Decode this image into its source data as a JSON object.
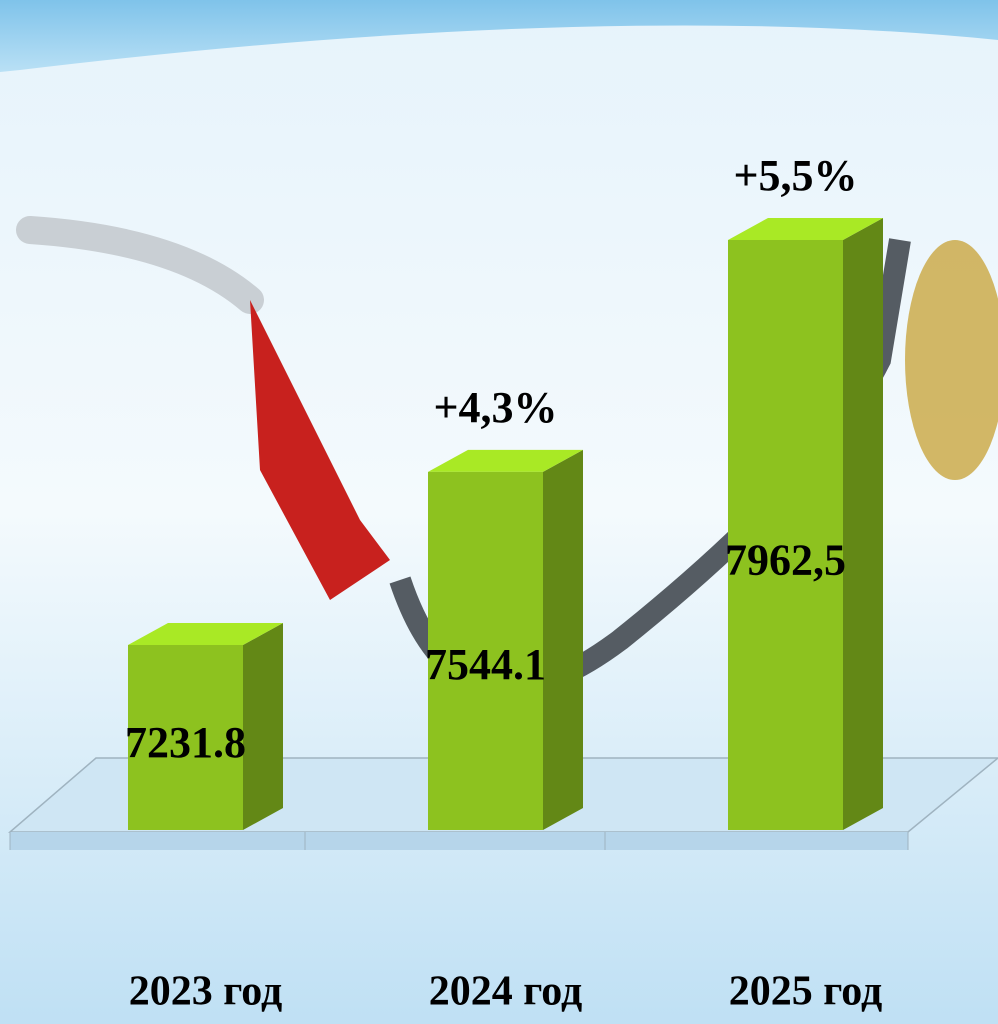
{
  "chart_data": {
    "type": "bar3d",
    "categories": [
      "2023 год",
      "2024 год",
      "2025 год"
    ],
    "values": [
      7231.8,
      7544.1,
      7962.5
    ],
    "value_labels": [
      "7231.8",
      "7544.1",
      "7962,5"
    ],
    "annotations": [
      "+4,3%",
      "+5,5%"
    ],
    "color": "#8dc21f"
  }
}
